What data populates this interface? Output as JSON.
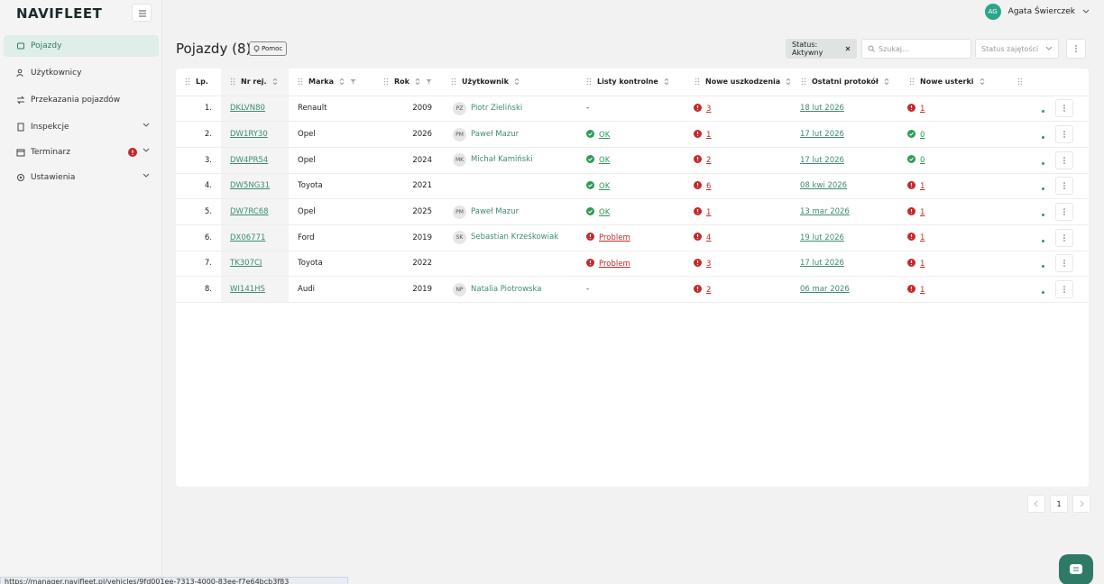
{
  "brand": "NAVIFLEET",
  "user": {
    "initials": "AG",
    "name": "Agata Świerczek"
  },
  "sidebar": [
    {
      "label": "Pojazdy"
    },
    {
      "label": "Użytkownicy"
    },
    {
      "label": "Przekazania pojazdów"
    },
    {
      "label": "Inspekcje"
    },
    {
      "label": "Terminarz"
    },
    {
      "label": "Ustawienia"
    }
  ],
  "page": {
    "title": "Pojazdy (8)",
    "help": "Pomoc"
  },
  "toolbar": {
    "status_filter": "Status: Aktywny",
    "search_placeholder": "Szukaj...",
    "occupancy": "Status zajętości"
  },
  "table": {
    "headers": [
      "Lp.",
      "Nr rej.",
      "Marka",
      "Rok",
      "Użytkownik",
      "Listy kontrolne",
      "Nowe uszkodzenia",
      "Ostatni protokół",
      "Nowe usterki"
    ],
    "rows": [
      {
        "lp": "1.",
        "plate": "DKLVN80",
        "brand": "Renault",
        "year": 2009,
        "user_initials": "PZ",
        "user": "Piotr Zieliński",
        "checklist": "-",
        "checklist_color": null,
        "damages": 3,
        "protocol": "18 lut 2026",
        "faults": 1,
        "faults_color": "#c62828"
      },
      {
        "lp": "2.",
        "plate": "DW1RY30",
        "brand": "Opel",
        "year": 2026,
        "user_initials": "PM",
        "user": "Paweł Mazur",
        "checklist": "OK",
        "checklist_color": "#2e9a57",
        "damages": 1,
        "protocol": "17 lut 2026",
        "faults": 0,
        "faults_color": "#2e9a57"
      },
      {
        "lp": "3.",
        "plate": "DW4PR54",
        "brand": "Opel",
        "year": 2024,
        "user_initials": "MK",
        "user": "Michał Kamiński",
        "checklist": "OK",
        "checklist_color": "#2e9a57",
        "damages": 2,
        "protocol": "17 lut 2026",
        "faults": 0,
        "faults_color": "#2e9a57"
      },
      {
        "lp": "4.",
        "plate": "DW5NG31",
        "brand": "Toyota",
        "year": 2021,
        "user_initials": null,
        "user": null,
        "checklist": "OK",
        "checklist_color": "#2e9a57",
        "damages": 6,
        "protocol": "08 kwi 2026",
        "faults": 1,
        "faults_color": "#c62828"
      },
      {
        "lp": "5.",
        "plate": "DW7RC68",
        "brand": "Opel",
        "year": 2025,
        "user_initials": "PM",
        "user": "Paweł Mazur",
        "checklist": "OK",
        "checklist_color": "#2e9a57",
        "damages": 1,
        "protocol": "13 mar 2026",
        "faults": 1,
        "faults_color": "#c62828"
      },
      {
        "lp": "6.",
        "plate": "DX06771",
        "brand": "Ford",
        "year": 2019,
        "user_initials": "SK",
        "user": "Sebastian Krześkowiak",
        "checklist": "Problem",
        "checklist_color": "#c62828",
        "damages": 4,
        "protocol": "19 lut 2026",
        "faults": 1,
        "faults_color": "#c62828"
      },
      {
        "lp": "7.",
        "plate": "TK307CJ",
        "brand": "Toyota",
        "year": 2022,
        "user_initials": null,
        "user": null,
        "checklist": "Problem",
        "checklist_color": "#c62828",
        "damages": 3,
        "protocol": "17 lut 2026",
        "faults": 1,
        "faults_color": "#c62828"
      },
      {
        "lp": "8.",
        "plate": "WI141HS",
        "brand": "Audi",
        "year": 2019,
        "user_initials": "NP",
        "user": "Natalia Piotrowska",
        "checklist": "-",
        "checklist_color": null,
        "damages": 2,
        "protocol": "06 mar 2026",
        "faults": 1,
        "faults_color": "#c62828"
      }
    ]
  },
  "pagination": {
    "page": "1"
  },
  "status_url": "https://manager.navifleet.pl/vehicles/9fd001ee-7313-4000-83ee-f7e64bcb3f83"
}
